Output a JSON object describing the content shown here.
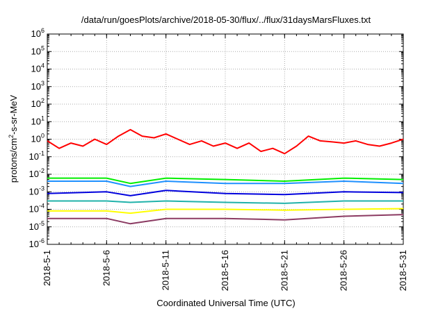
{
  "chart_data": {
    "type": "line",
    "title": "/data/run/goesPlots/archive/2018-05-30/flux/../flux/31daysMarsFluxes.txt",
    "xlabel": "Coordinated Universal Time (UTC)",
    "ylabel": {
      "pre": "protons/cm",
      "sup": "2",
      "post": "-s-sr-MeV"
    },
    "yscale": "log",
    "ylim": [
      1e-06,
      1000000.0
    ],
    "xlim": [
      "2018-05-01",
      "2018-05-31"
    ],
    "grid": true,
    "legend": "none",
    "y_ticks": [
      {
        "base": "10",
        "exp": "-6",
        "value": 1e-06
      },
      {
        "base": "10",
        "exp": "-5",
        "value": 1e-05
      },
      {
        "base": "10",
        "exp": "-4",
        "value": 0.0001
      },
      {
        "base": "10",
        "exp": "-3",
        "value": 0.001
      },
      {
        "base": "10",
        "exp": "-2",
        "value": 0.01
      },
      {
        "base": "10",
        "exp": "-1",
        "value": 0.1
      },
      {
        "base": "10",
        "exp": "0",
        "value": 1
      },
      {
        "base": "10",
        "exp": "1",
        "value": 10
      },
      {
        "base": "10",
        "exp": "2",
        "value": 100
      },
      {
        "base": "10",
        "exp": "3",
        "value": 1000
      },
      {
        "base": "10",
        "exp": "4",
        "value": 10000
      },
      {
        "base": "10",
        "exp": "5",
        "value": 100000
      },
      {
        "base": "10",
        "exp": "6",
        "value": 1000000
      }
    ],
    "x_ticks": [
      {
        "label": "2018-5-1",
        "date": "2018-05-01"
      },
      {
        "label": "2018-5-6",
        "date": "2018-05-06"
      },
      {
        "label": "2018-5-11",
        "date": "2018-05-11"
      },
      {
        "label": "2018-5-16",
        "date": "2018-05-16"
      },
      {
        "label": "2018-5-21",
        "date": "2018-05-21"
      },
      {
        "label": "2018-5-26",
        "date": "2018-05-26"
      },
      {
        "label": "2018-5-31",
        "date": "2018-05-31"
      }
    ],
    "series": [
      {
        "color": "#ff0000",
        "points": [
          [
            "2018-05-01",
            0.8
          ],
          [
            "2018-05-02",
            0.3
          ],
          [
            "2018-05-03",
            0.6
          ],
          [
            "2018-05-04",
            0.4
          ],
          [
            "2018-05-05",
            1.0
          ],
          [
            "2018-05-06",
            0.5
          ],
          [
            "2018-05-07",
            1.5
          ],
          [
            "2018-05-08",
            3.5
          ],
          [
            "2018-05-09",
            1.5
          ],
          [
            "2018-05-10",
            1.2
          ],
          [
            "2018-05-11",
            2.0
          ],
          [
            "2018-05-12",
            1.0
          ],
          [
            "2018-05-13",
            0.5
          ],
          [
            "2018-05-14",
            0.8
          ],
          [
            "2018-05-15",
            0.4
          ],
          [
            "2018-05-16",
            0.6
          ],
          [
            "2018-05-17",
            0.3
          ],
          [
            "2018-05-18",
            0.6
          ],
          [
            "2018-05-19",
            0.2
          ],
          [
            "2018-05-20",
            0.3
          ],
          [
            "2018-05-21",
            0.15
          ],
          [
            "2018-05-22",
            0.4
          ],
          [
            "2018-05-23",
            1.5
          ],
          [
            "2018-05-24",
            0.8
          ],
          [
            "2018-05-25",
            0.7
          ],
          [
            "2018-05-26",
            0.6
          ],
          [
            "2018-05-27",
            0.8
          ],
          [
            "2018-05-28",
            0.5
          ],
          [
            "2018-05-29",
            0.4
          ],
          [
            "2018-05-30",
            0.6
          ],
          [
            "2018-05-31",
            1.0
          ]
        ]
      },
      {
        "color": "#00ee00",
        "points": [
          [
            "2018-05-01",
            0.006
          ],
          [
            "2018-05-06",
            0.006
          ],
          [
            "2018-05-08",
            0.003
          ],
          [
            "2018-05-11",
            0.006
          ],
          [
            "2018-05-16",
            0.005
          ],
          [
            "2018-05-21",
            0.004
          ],
          [
            "2018-05-26",
            0.006
          ],
          [
            "2018-05-31",
            0.005
          ]
        ]
      },
      {
        "color": "#1e90ff",
        "points": [
          [
            "2018-05-01",
            0.004
          ],
          [
            "2018-05-06",
            0.004
          ],
          [
            "2018-05-08",
            0.002
          ],
          [
            "2018-05-11",
            0.004
          ],
          [
            "2018-05-16",
            0.003
          ],
          [
            "2018-05-21",
            0.003
          ],
          [
            "2018-05-26",
            0.004
          ],
          [
            "2018-05-31",
            0.003
          ]
        ]
      },
      {
        "color": "#0000dd",
        "points": [
          [
            "2018-05-01",
            0.0008
          ],
          [
            "2018-05-06",
            0.001
          ],
          [
            "2018-05-08",
            0.0006
          ],
          [
            "2018-05-11",
            0.0012
          ],
          [
            "2018-05-16",
            0.0008
          ],
          [
            "2018-05-21",
            0.0007
          ],
          [
            "2018-05-26",
            0.001
          ],
          [
            "2018-05-31",
            0.0009
          ]
        ]
      },
      {
        "color": "#20b2aa",
        "points": [
          [
            "2018-05-01",
            0.0003
          ],
          [
            "2018-05-06",
            0.0003
          ],
          [
            "2018-05-08",
            0.00025
          ],
          [
            "2018-05-11",
            0.0003
          ],
          [
            "2018-05-16",
            0.00025
          ],
          [
            "2018-05-21",
            0.00022
          ],
          [
            "2018-05-26",
            0.0003
          ],
          [
            "2018-05-31",
            0.0003
          ]
        ]
      },
      {
        "color": "#ffff00",
        "points": [
          [
            "2018-05-01",
            8e-05
          ],
          [
            "2018-05-06",
            8e-05
          ],
          [
            "2018-05-08",
            6e-05
          ],
          [
            "2018-05-11",
            0.0001
          ],
          [
            "2018-05-16",
            0.0001
          ],
          [
            "2018-05-21",
            9e-05
          ],
          [
            "2018-05-26",
            0.0001
          ],
          [
            "2018-05-31",
            0.00011
          ]
        ]
      },
      {
        "color": "#8b3a62",
        "points": [
          [
            "2018-05-01",
            3e-05
          ],
          [
            "2018-05-06",
            3e-05
          ],
          [
            "2018-05-08",
            1.5e-05
          ],
          [
            "2018-05-11",
            3e-05
          ],
          [
            "2018-05-16",
            3e-05
          ],
          [
            "2018-05-21",
            2.5e-05
          ],
          [
            "2018-05-26",
            4e-05
          ],
          [
            "2018-05-31",
            5e-05
          ]
        ]
      }
    ]
  }
}
